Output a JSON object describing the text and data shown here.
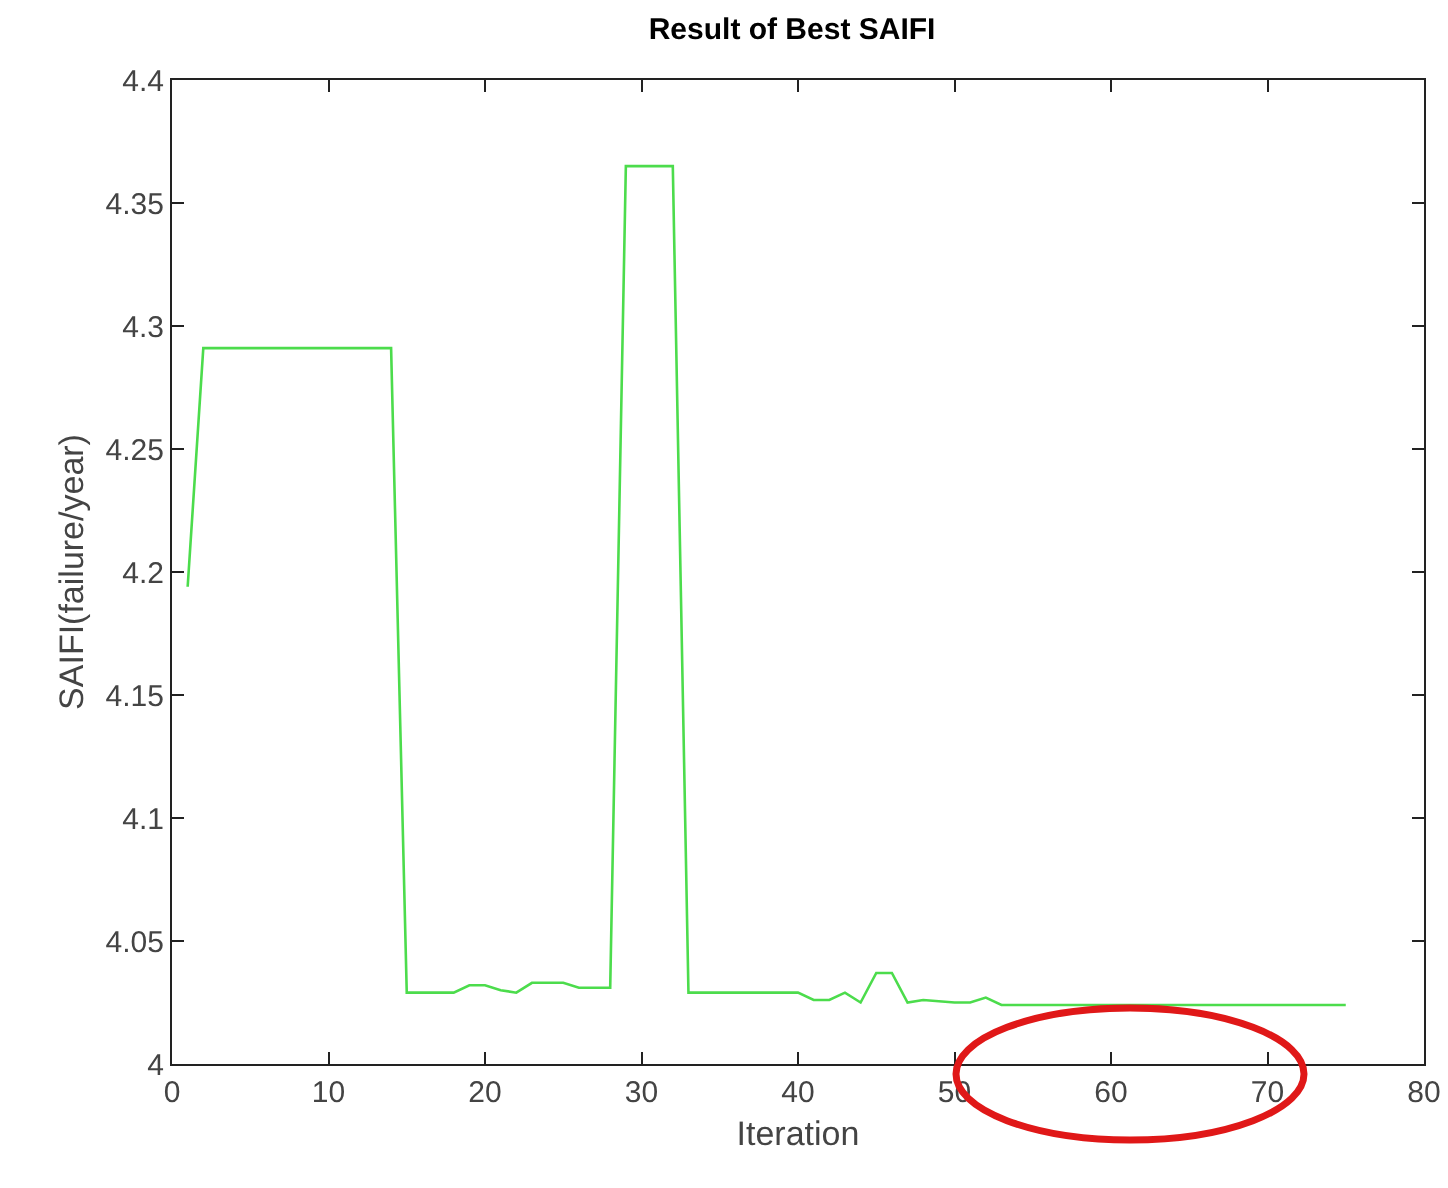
{
  "chart_data": {
    "type": "line",
    "title": "Result of Best SAIFI",
    "xlabel": "Iteration",
    "ylabel": "SAIFI(failure/year)",
    "x": [
      1,
      2,
      14,
      15,
      18,
      19,
      20,
      21,
      22,
      23,
      25,
      26,
      28,
      29,
      32,
      33,
      40,
      41,
      42,
      43,
      44,
      45,
      46,
      47,
      48,
      50,
      51,
      52,
      53,
      75
    ],
    "series": [
      {
        "color": "#4cdc4c",
        "values": [
          4.194,
          4.291,
          4.291,
          4.029,
          4.029,
          4.032,
          4.032,
          4.03,
          4.029,
          4.033,
          4.033,
          4.031,
          4.031,
          4.365,
          4.365,
          4.029,
          4.029,
          4.026,
          4.026,
          4.029,
          4.025,
          4.037,
          4.037,
          4.025,
          4.026,
          4.025,
          4.025,
          4.027,
          4.024,
          4.024
        ]
      }
    ],
    "xlim": [
      0,
      80
    ],
    "xticks": [
      0,
      10,
      20,
      30,
      40,
      50,
      60,
      70,
      80
    ],
    "ylim": [
      4,
      4.4
    ],
    "yticks": [
      4,
      4.05,
      4.1,
      4.15,
      4.2,
      4.25,
      4.3,
      4.35,
      4.4
    ],
    "grid": false,
    "marker": "none",
    "line_style": "solid"
  }
}
